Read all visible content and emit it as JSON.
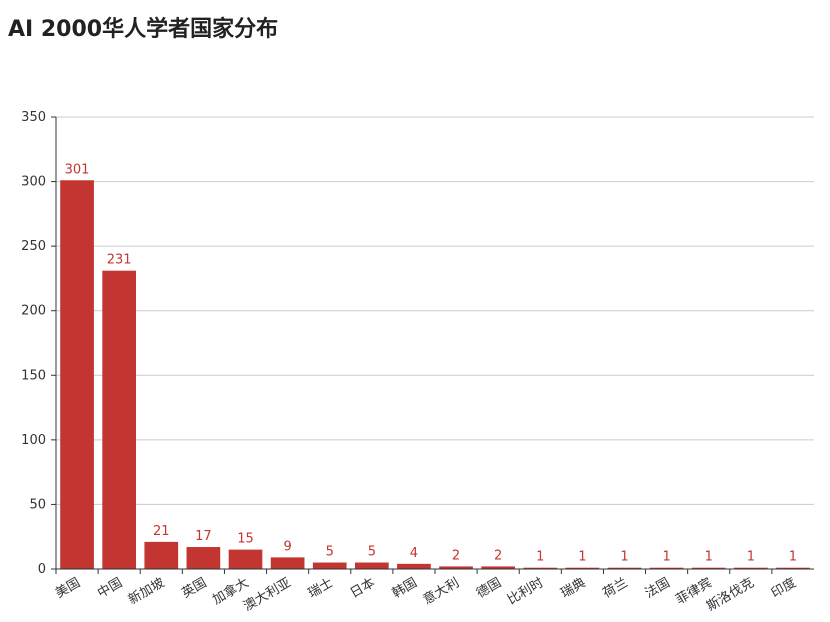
{
  "chart_data": {
    "type": "bar",
    "title": "AI 2000华人学者国家分布",
    "categories": [
      "美国",
      "中国",
      "新加坡",
      "英国",
      "加拿大",
      "澳大利亚",
      "瑞士",
      "日本",
      "韩国",
      "意大利",
      "德国",
      "比利时",
      "瑞典",
      "荷兰",
      "法国",
      "菲律宾",
      "斯洛伐克",
      "印度"
    ],
    "values": [
      301,
      231,
      21,
      17,
      15,
      9,
      5,
      5,
      4,
      2,
      2,
      1,
      1,
      1,
      1,
      1,
      1,
      1
    ],
    "color": "#c23531",
    "ylim": [
      0,
      350
    ],
    "yticks": [
      0,
      50,
      100,
      150,
      200,
      250,
      300,
      350
    ],
    "grid": true
  }
}
